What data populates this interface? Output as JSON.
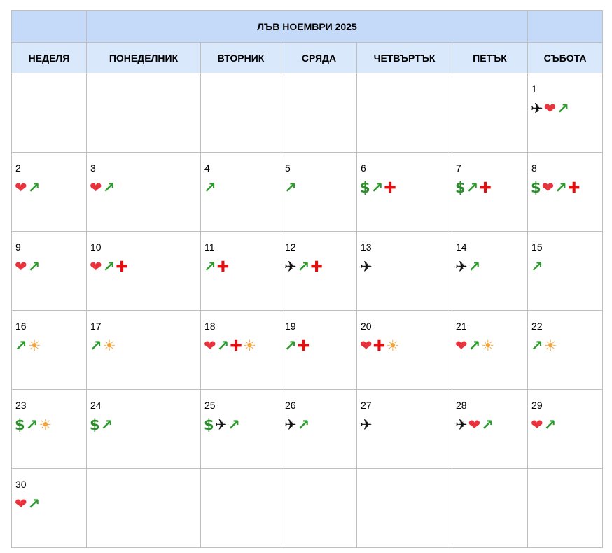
{
  "title": "ЛЪВ НОЕМВРИ 2025",
  "weekdays": [
    "НЕДЕЛЯ",
    "ПОНЕДЕЛНИК",
    "ВТОРНИК",
    "СРЯДА",
    "ЧЕТВЪРТЪК",
    "ПЕТЪК",
    "СЪБОТА"
  ],
  "weeks": [
    [
      null,
      null,
      null,
      null,
      null,
      null,
      {
        "day": 1,
        "icons": [
          "✈",
          "❤",
          "↗"
        ]
      }
    ],
    [
      {
        "day": 2,
        "icons": [
          "❤",
          "↗"
        ]
      },
      {
        "day": 3,
        "icons": [
          "❤",
          "↗"
        ]
      },
      {
        "day": 4,
        "icons": [
          "↗"
        ]
      },
      {
        "day": 5,
        "icons": [
          "↗"
        ]
      },
      {
        "day": 6,
        "icons": [
          "$",
          "↗",
          "✚"
        ]
      },
      {
        "day": 7,
        "icons": [
          "$",
          "↗",
          "✚"
        ]
      },
      {
        "day": 8,
        "icons": [
          "$",
          "❤",
          "↗",
          "✚"
        ]
      }
    ],
    [
      {
        "day": 9,
        "icons": [
          "❤",
          "↗"
        ]
      },
      {
        "day": 10,
        "icons": [
          "❤",
          "↗",
          "✚"
        ]
      },
      {
        "day": 11,
        "icons": [
          "↗",
          "✚"
        ]
      },
      {
        "day": 12,
        "icons": [
          "✈",
          "↗",
          "✚"
        ]
      },
      {
        "day": 13,
        "icons": [
          "✈"
        ]
      },
      {
        "day": 14,
        "icons": [
          "✈",
          "↗"
        ]
      },
      {
        "day": 15,
        "icons": [
          "↗"
        ]
      }
    ],
    [
      {
        "day": 16,
        "icons": [
          "↗",
          "☀"
        ]
      },
      {
        "day": 17,
        "icons": [
          "↗",
          "☀"
        ]
      },
      {
        "day": 18,
        "icons": [
          "❤",
          "↗",
          "✚",
          "☀"
        ]
      },
      {
        "day": 19,
        "icons": [
          "↗",
          "✚"
        ]
      },
      {
        "day": 20,
        "icons": [
          "❤",
          "✚",
          "☀"
        ]
      },
      {
        "day": 21,
        "icons": [
          "❤",
          "↗",
          "☀"
        ]
      },
      {
        "day": 22,
        "icons": [
          "↗",
          "☀"
        ]
      }
    ],
    [
      {
        "day": 23,
        "icons": [
          "$",
          "↗",
          "☀"
        ]
      },
      {
        "day": 24,
        "icons": [
          "$",
          "↗"
        ]
      },
      {
        "day": 25,
        "icons": [
          "$",
          "✈",
          "↗"
        ]
      },
      {
        "day": 26,
        "icons": [
          "✈",
          "↗"
        ]
      },
      {
        "day": 27,
        "icons": [
          "✈"
        ]
      },
      {
        "day": 28,
        "icons": [
          "✈",
          "❤",
          "↗"
        ]
      },
      {
        "day": 29,
        "icons": [
          "❤",
          "↗"
        ]
      }
    ],
    [
      {
        "day": 30,
        "icons": [
          "❤",
          "↗"
        ]
      },
      null,
      null,
      null,
      null,
      null,
      null
    ]
  ]
}
